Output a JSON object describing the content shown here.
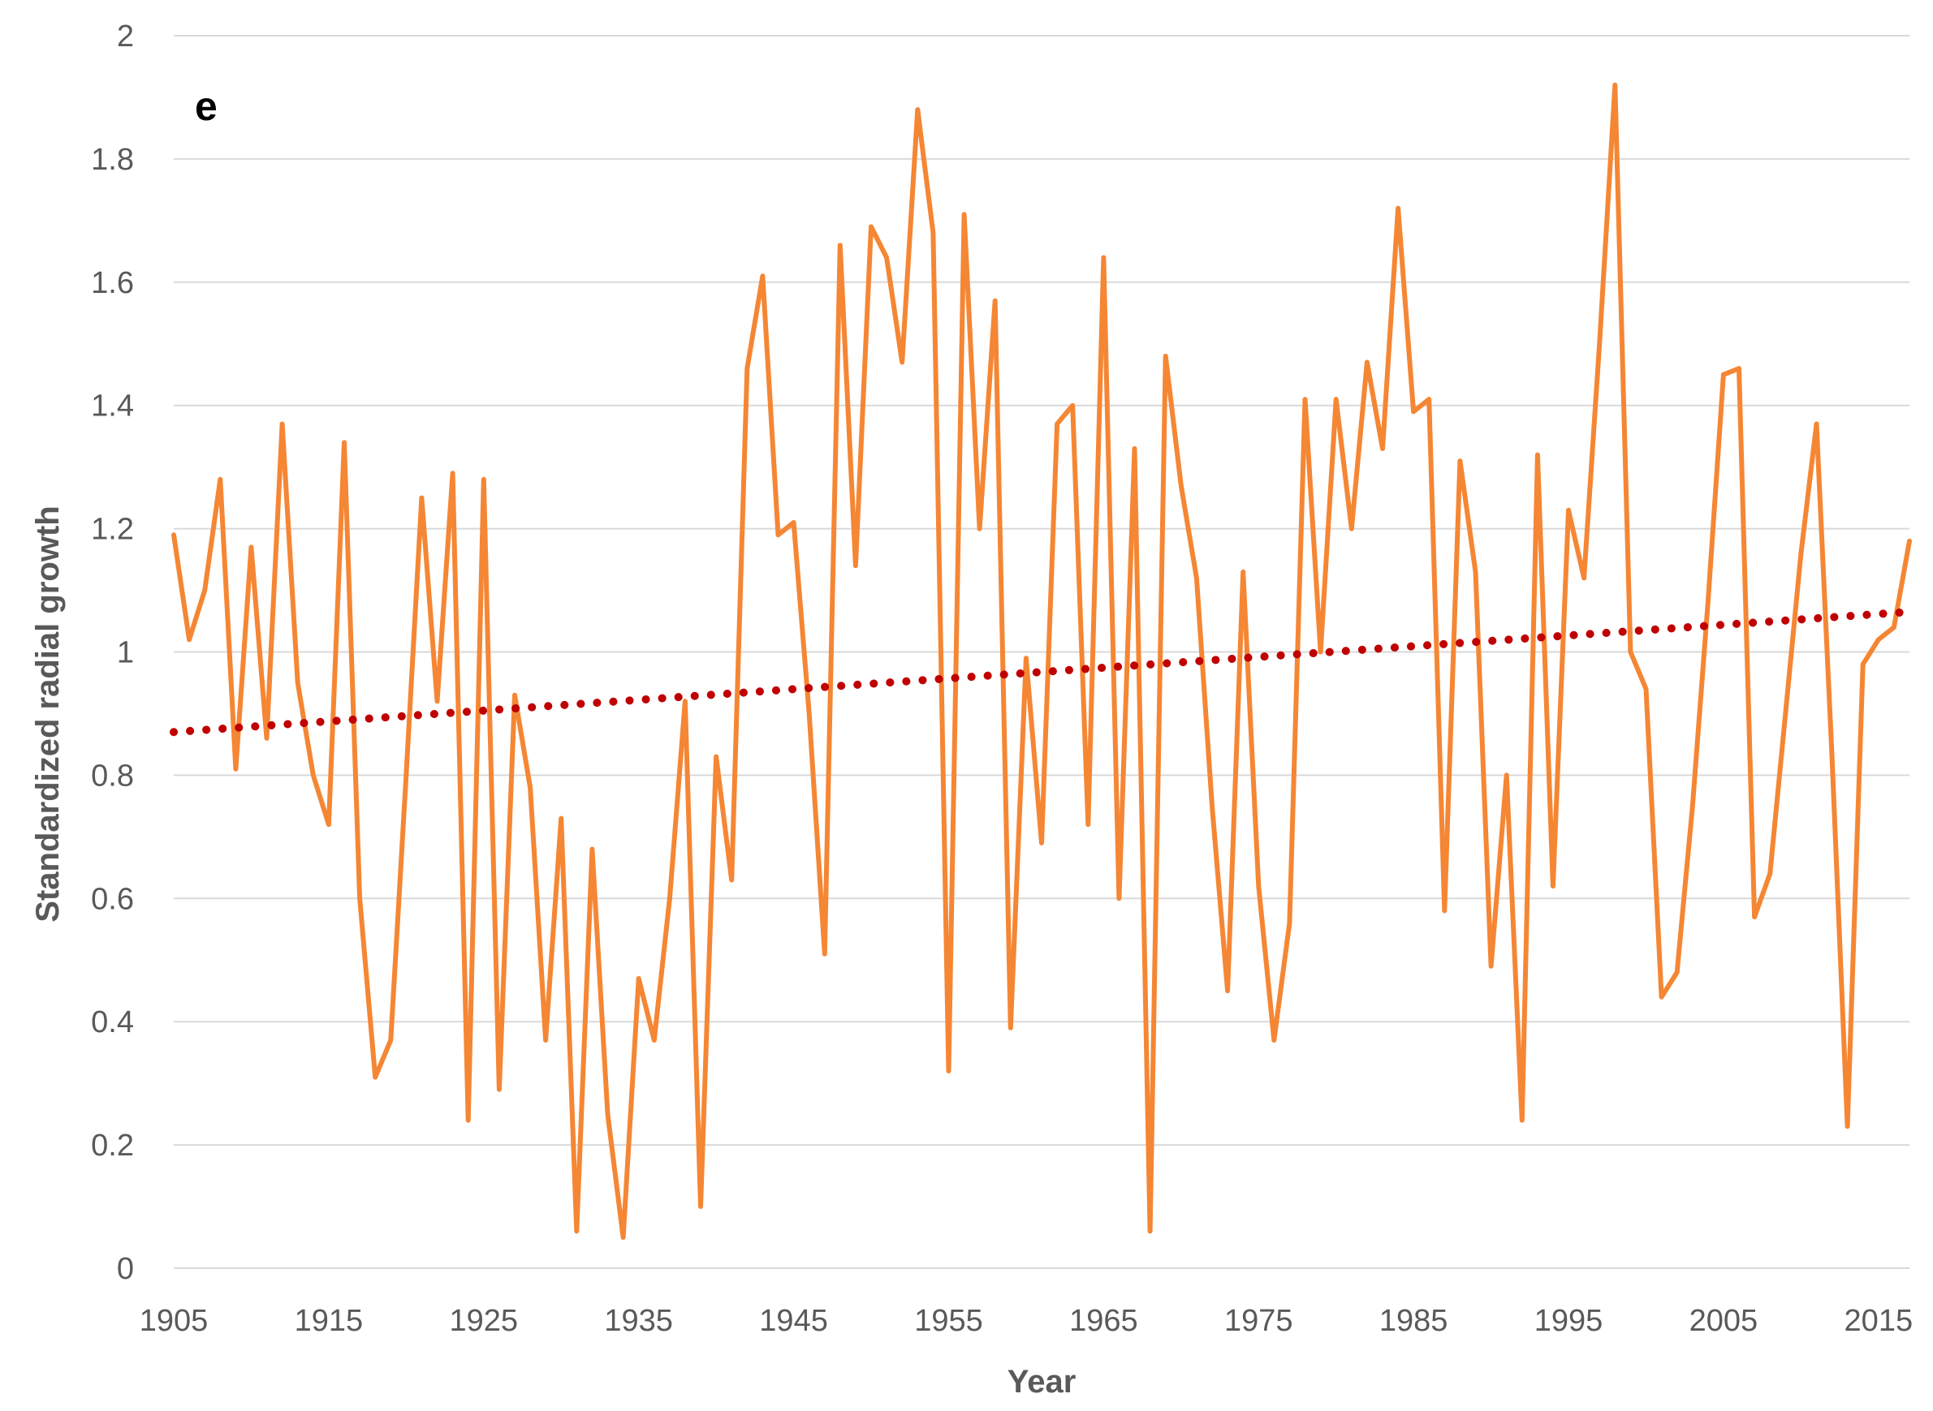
{
  "chart_data": {
    "type": "line",
    "panel_label": "e",
    "title": "",
    "xlabel": "Year",
    "ylabel": "Standardized  radial growth",
    "xlim": [
      1905,
      2017
    ],
    "ylim": [
      0,
      2
    ],
    "x_ticks": [
      "1905",
      "1915",
      "1925",
      "1935",
      "1945",
      "1955",
      "1965",
      "1975",
      "1985",
      "1995",
      "2005",
      "2015"
    ],
    "y_ticks": [
      "0",
      "0.2",
      "0.4",
      "0.6",
      "0.8",
      "1",
      "1.2",
      "1.4",
      "1.6",
      "1.8",
      "2"
    ],
    "grid": true,
    "legend": "none",
    "colors": {
      "series": "#F58634",
      "trend": "#C00000",
      "grid": "#D9D9D9",
      "text": "#595959"
    },
    "series": [
      {
        "name": "Standardized radial growth",
        "style": "solid",
        "x": [
          1905,
          1906,
          1907,
          1908,
          1909,
          1910,
          1911,
          1912,
          1913,
          1914,
          1915,
          1916,
          1917,
          1918,
          1919,
          1920,
          1921,
          1922,
          1923,
          1924,
          1925,
          1926,
          1927,
          1928,
          1929,
          1930,
          1931,
          1932,
          1933,
          1934,
          1935,
          1936,
          1937,
          1938,
          1939,
          1940,
          1941,
          1942,
          1943,
          1944,
          1945,
          1946,
          1947,
          1948,
          1949,
          1950,
          1951,
          1952,
          1953,
          1954,
          1955,
          1956,
          1957,
          1958,
          1959,
          1960,
          1961,
          1962,
          1963,
          1964,
          1965,
          1966,
          1967,
          1968,
          1969,
          1970,
          1971,
          1972,
          1973,
          1974,
          1975,
          1976,
          1977,
          1978,
          1979,
          1980,
          1981,
          1982,
          1983,
          1984,
          1985,
          1986,
          1987,
          1988,
          1989,
          1990,
          1991,
          1992,
          1993,
          1994,
          1995,
          1996,
          1997,
          1998,
          1999,
          2000,
          2001,
          2002,
          2003,
          2004,
          2005,
          2006,
          2007,
          2008,
          2009,
          2010,
          2011,
          2012,
          2013,
          2014,
          2015,
          2016,
          2017
        ],
        "values": [
          1.19,
          1.02,
          1.1,
          1.28,
          0.81,
          1.17,
          0.86,
          1.37,
          0.95,
          0.8,
          0.72,
          1.34,
          0.6,
          0.31,
          0.37,
          0.8,
          1.25,
          0.92,
          1.29,
          0.24,
          1.28,
          0.29,
          0.93,
          0.78,
          0.37,
          0.73,
          0.06,
          0.68,
          0.25,
          0.05,
          0.47,
          0.37,
          0.6,
          0.92,
          0.1,
          0.83,
          0.63,
          1.46,
          1.61,
          1.19,
          1.21,
          0.9,
          0.51,
          1.66,
          1.14,
          1.69,
          1.64,
          1.47,
          1.88,
          1.68,
          0.32,
          1.71,
          1.2,
          1.57,
          0.39,
          0.99,
          0.69,
          1.37,
          1.4,
          0.72,
          1.64,
          0.6,
          1.33,
          0.06,
          1.48,
          1.27,
          1.12,
          0.75,
          0.45,
          1.13,
          0.62,
          0.37,
          0.56,
          1.41,
          1.0,
          1.41,
          1.2,
          1.47,
          1.33,
          1.72,
          1.39,
          1.41,
          0.58,
          1.31,
          1.13,
          0.49,
          0.8,
          0.24,
          1.32,
          0.62,
          1.23,
          1.12,
          1.5,
          1.92,
          1.0,
          0.94,
          0.44,
          0.48,
          0.75,
          1.08,
          1.45,
          1.46,
          0.57,
          0.64,
          0.9,
          1.16,
          1.37,
          0.83,
          0.23,
          0.98,
          1.02,
          1.04,
          1.18
        ]
      },
      {
        "name": "Linear trend",
        "style": "dotted",
        "x": [
          1905,
          2017
        ],
        "values": [
          0.87,
          1.065
        ]
      }
    ]
  }
}
